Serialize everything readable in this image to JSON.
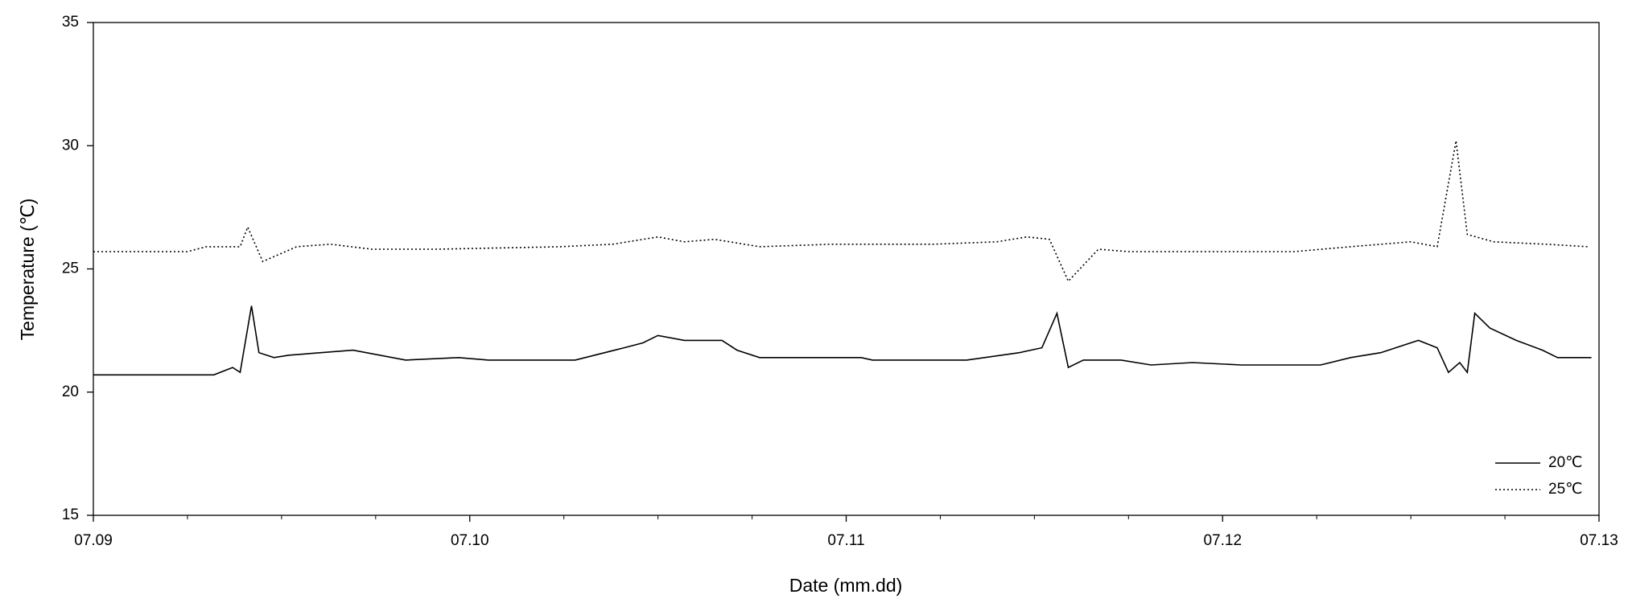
{
  "chart_data": {
    "type": "line",
    "xlabel": "Date (mm.dd)",
    "ylabel": "Temperature (℃)",
    "xlim": [
      9,
      13
    ],
    "ylim": [
      15,
      35
    ],
    "xticks": [
      {
        "value": 9,
        "label": "07.09"
      },
      {
        "value": 10,
        "label": "07.10"
      },
      {
        "value": 11,
        "label": "07.11"
      },
      {
        "value": 12,
        "label": "07.12"
      },
      {
        "value": 13,
        "label": "07.13"
      }
    ],
    "xminorticks": [
      9.25,
      9.5,
      9.75,
      10.25,
      10.5,
      10.75,
      11.25,
      11.5,
      11.75,
      12.25,
      12.5,
      12.75
    ],
    "yticks": [
      15,
      20,
      25,
      30,
      35
    ],
    "legend": "lower right",
    "series": [
      {
        "name": "20℃",
        "color": "#000000",
        "dash": "solid",
        "x": [
          9.0,
          9.32,
          9.37,
          9.39,
          9.42,
          9.44,
          9.48,
          9.52,
          9.69,
          9.83,
          9.97,
          10.05,
          10.28,
          10.41,
          10.46,
          10.5,
          10.57,
          10.67,
          10.71,
          10.77,
          11.04,
          11.07,
          11.32,
          11.46,
          11.52,
          11.56,
          11.59,
          11.63,
          11.73,
          11.81,
          11.92,
          12.05,
          12.26,
          12.34,
          12.42,
          12.52,
          12.57,
          12.6,
          12.63,
          12.65,
          12.67,
          12.71,
          12.78,
          12.85,
          12.89,
          12.98
        ],
        "values": [
          20.7,
          20.7,
          21.0,
          20.8,
          23.5,
          21.6,
          21.4,
          21.5,
          21.7,
          21.3,
          21.4,
          21.3,
          21.3,
          21.8,
          22.0,
          22.3,
          22.1,
          22.1,
          21.7,
          21.4,
          21.4,
          21.3,
          21.3,
          21.6,
          21.8,
          23.2,
          21.0,
          21.3,
          21.3,
          21.1,
          21.2,
          21.1,
          21.1,
          21.4,
          21.6,
          22.1,
          21.8,
          20.8,
          21.2,
          20.8,
          23.2,
          22.6,
          22.1,
          21.7,
          21.4,
          21.4
        ]
      },
      {
        "name": "25℃",
        "color": "#000000",
        "dash": "dotted",
        "x": [
          9.0,
          9.25,
          9.3,
          9.39,
          9.41,
          9.45,
          9.54,
          9.63,
          9.74,
          9.91,
          10.24,
          10.38,
          10.5,
          10.57,
          10.65,
          10.77,
          10.96,
          11.23,
          11.4,
          11.48,
          11.54,
          11.59,
          11.67,
          11.75,
          12.19,
          12.34,
          12.5,
          12.57,
          12.62,
          12.65,
          12.72,
          12.86,
          12.97
        ],
        "values": [
          25.7,
          25.7,
          25.9,
          25.9,
          26.7,
          25.3,
          25.9,
          26.0,
          25.8,
          25.8,
          25.9,
          26.0,
          26.3,
          26.1,
          26.2,
          25.9,
          26.0,
          26.0,
          26.1,
          26.3,
          26.2,
          24.5,
          25.8,
          25.7,
          25.7,
          25.9,
          26.1,
          25.9,
          30.2,
          26.4,
          26.1,
          26.0,
          25.9
        ]
      }
    ]
  }
}
